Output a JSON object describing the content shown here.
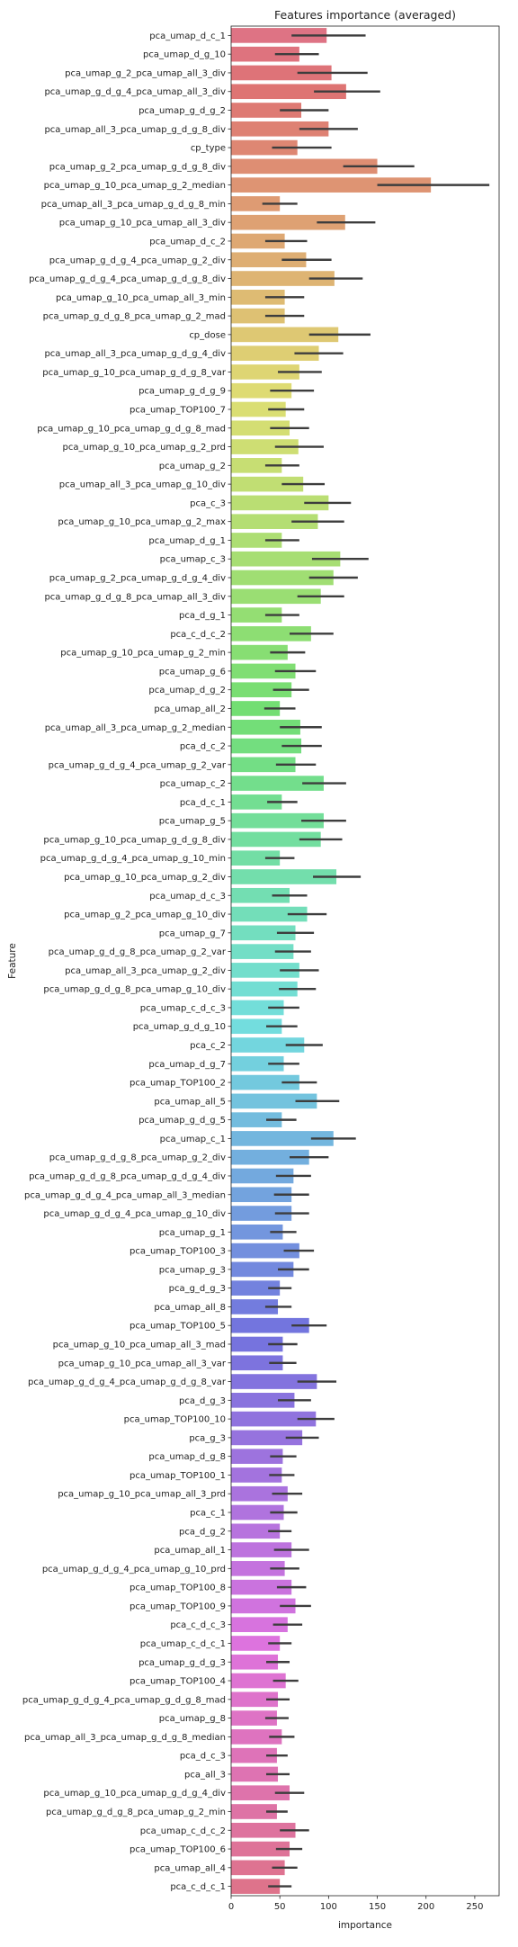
{
  "chart_data": {
    "type": "bar",
    "orientation": "horizontal",
    "title": "Features importance (averaged)",
    "xlabel": "importance",
    "ylabel": "Feature",
    "xlim": [
      0,
      275
    ],
    "xticks": [
      0,
      50,
      100,
      150,
      200,
      250
    ],
    "grid": false,
    "legend": "none",
    "palette": "husl",
    "series": [
      {
        "values": [
          {
            "feature": "pca_umap_d_c_1",
            "value": 98,
            "err": [
              62,
              138
            ]
          },
          {
            "feature": "pca_umap_d_g_10",
            "value": 70,
            "err": [
              45,
              90
            ]
          },
          {
            "feature": "pca_umap_g_2_pca_umap_all_3_div",
            "value": 103,
            "err": [
              68,
              140
            ]
          },
          {
            "feature": "pca_umap_g_d_g_4_pca_umap_all_3_div",
            "value": 118,
            "err": [
              85,
              153
            ]
          },
          {
            "feature": "pca_umap_g_d_g_2",
            "value": 72,
            "err": [
              50,
              100
            ]
          },
          {
            "feature": "pca_umap_all_3_pca_umap_g_d_g_8_div",
            "value": 100,
            "err": [
              70,
              130
            ]
          },
          {
            "feature": "cp_type",
            "value": 68,
            "err": [
              42,
              103
            ]
          },
          {
            "feature": "pca_umap_g_2_pca_umap_g_d_g_8_div",
            "value": 150,
            "err": [
              115,
              188
            ]
          },
          {
            "feature": "pca_umap_g_10_pca_umap_g_2_median",
            "value": 205,
            "err": [
              150,
              265
            ]
          },
          {
            "feature": "pca_umap_all_3_pca_umap_g_d_g_8_min",
            "value": 50,
            "err": [
              32,
              68
            ]
          },
          {
            "feature": "pca_umap_g_10_pca_umap_all_3_div",
            "value": 117,
            "err": [
              88,
              148
            ]
          },
          {
            "feature": "pca_umap_d_c_2",
            "value": 55,
            "err": [
              35,
              78
            ]
          },
          {
            "feature": "pca_umap_g_d_g_4_pca_umap_g_2_div",
            "value": 77,
            "err": [
              52,
              103
            ]
          },
          {
            "feature": "pca_umap_g_d_g_4_pca_umap_g_d_g_8_div",
            "value": 106,
            "err": [
              80,
              135
            ]
          },
          {
            "feature": "pca_umap_g_10_pca_umap_all_3_min",
            "value": 55,
            "err": [
              35,
              75
            ]
          },
          {
            "feature": "pca_umap_g_d_g_8_pca_umap_g_2_mad",
            "value": 55,
            "err": [
              35,
              75
            ]
          },
          {
            "feature": "cp_dose",
            "value": 110,
            "err": [
              80,
              143
            ]
          },
          {
            "feature": "pca_umap_all_3_pca_umap_g_d_g_4_div",
            "value": 90,
            "err": [
              65,
              115
            ]
          },
          {
            "feature": "pca_umap_g_10_pca_umap_g_d_g_8_var",
            "value": 70,
            "err": [
              48,
              93
            ]
          },
          {
            "feature": "pca_umap_g_d_g_9",
            "value": 62,
            "err": [
              40,
              85
            ]
          },
          {
            "feature": "pca_umap_TOP100_7",
            "value": 56,
            "err": [
              38,
              75
            ]
          },
          {
            "feature": "pca_umap_g_10_pca_umap_g_d_g_8_mad",
            "value": 60,
            "err": [
              40,
              80
            ]
          },
          {
            "feature": "pca_umap_g_10_pca_umap_g_2_prd",
            "value": 69,
            "err": [
              45,
              95
            ]
          },
          {
            "feature": "pca_umap_g_2",
            "value": 52,
            "err": [
              35,
              70
            ]
          },
          {
            "feature": "pca_umap_all_3_pca_umap_g_10_div",
            "value": 74,
            "err": [
              52,
              96
            ]
          },
          {
            "feature": "pca_c_3",
            "value": 100,
            "err": [
              75,
              123
            ]
          },
          {
            "feature": "pca_umap_g_10_pca_umap_g_2_max",
            "value": 89,
            "err": [
              62,
              116
            ]
          },
          {
            "feature": "pca_umap_d_g_1",
            "value": 52,
            "err": [
              35,
              70
            ]
          },
          {
            "feature": "pca_umap_c_3",
            "value": 112,
            "err": [
              83,
              141
            ]
          },
          {
            "feature": "pca_umap_g_2_pca_umap_g_d_g_4_div",
            "value": 105,
            "err": [
              80,
              130
            ]
          },
          {
            "feature": "pca_umap_g_d_g_8_pca_umap_all_3_div",
            "value": 92,
            "err": [
              68,
              116
            ]
          },
          {
            "feature": "pca_d_g_1",
            "value": 52,
            "err": [
              35,
              70
            ]
          },
          {
            "feature": "pca_c_d_c_2",
            "value": 82,
            "err": [
              60,
              105
            ]
          },
          {
            "feature": "pca_umap_g_10_pca_umap_g_2_min",
            "value": 58,
            "err": [
              40,
              76
            ]
          },
          {
            "feature": "pca_umap_g_6",
            "value": 66,
            "err": [
              45,
              87
            ]
          },
          {
            "feature": "pca_umap_d_g_2",
            "value": 62,
            "err": [
              43,
              80
            ]
          },
          {
            "feature": "pca_umap_all_2",
            "value": 50,
            "err": [
              34,
              66
            ]
          },
          {
            "feature": "pca_umap_all_3_pca_umap_g_2_median",
            "value": 71,
            "err": [
              50,
              93
            ]
          },
          {
            "feature": "pca_d_c_2",
            "value": 72,
            "err": [
              52,
              93
            ]
          },
          {
            "feature": "pca_umap_g_d_g_4_pca_umap_g_2_var",
            "value": 66,
            "err": [
              46,
              87
            ]
          },
          {
            "feature": "pca_umap_c_2",
            "value": 95,
            "err": [
              73,
              118
            ]
          },
          {
            "feature": "pca_d_c_1",
            "value": 52,
            "err": [
              37,
              68
            ]
          },
          {
            "feature": "pca_umap_g_5",
            "value": 95,
            "err": [
              72,
              118
            ]
          },
          {
            "feature": "pca_umap_g_10_pca_umap_g_d_g_8_div",
            "value": 92,
            "err": [
              70,
              114
            ]
          },
          {
            "feature": "pca_umap_g_d_g_4_pca_umap_g_10_min",
            "value": 50,
            "err": [
              35,
              65
            ]
          },
          {
            "feature": "pca_umap_g_10_pca_umap_g_2_div",
            "value": 108,
            "err": [
              84,
              133
            ]
          },
          {
            "feature": "pca_umap_d_c_3",
            "value": 60,
            "err": [
              42,
              78
            ]
          },
          {
            "feature": "pca_umap_g_2_pca_umap_g_10_div",
            "value": 78,
            "err": [
              58,
              98
            ]
          },
          {
            "feature": "pca_umap_g_7",
            "value": 66,
            "err": [
              47,
              85
            ]
          },
          {
            "feature": "pca_umap_g_d_g_8_pca_umap_g_2_var",
            "value": 64,
            "err": [
              45,
              82
            ]
          },
          {
            "feature": "pca_umap_all_3_pca_umap_g_2_div",
            "value": 70,
            "err": [
              50,
              90
            ]
          },
          {
            "feature": "pca_umap_g_d_g_8_pca_umap_g_10_div",
            "value": 68,
            "err": [
              49,
              87
            ]
          },
          {
            "feature": "pca_umap_c_d_c_3",
            "value": 54,
            "err": [
              38,
              70
            ]
          },
          {
            "feature": "pca_umap_g_d_g_10",
            "value": 52,
            "err": [
              36,
              68
            ]
          },
          {
            "feature": "pca_c_2",
            "value": 75,
            "err": [
              56,
              94
            ]
          },
          {
            "feature": "pca_umap_d_g_7",
            "value": 54,
            "err": [
              38,
              70
            ]
          },
          {
            "feature": "pca_umap_TOP100_2",
            "value": 70,
            "err": [
              52,
              88
            ]
          },
          {
            "feature": "pca_umap_all_5",
            "value": 88,
            "err": [
              66,
              111
            ]
          },
          {
            "feature": "pca_umap_g_d_g_5",
            "value": 52,
            "err": [
              36,
              67
            ]
          },
          {
            "feature": "pca_umap_c_1",
            "value": 105,
            "err": [
              82,
              128
            ]
          },
          {
            "feature": "pca_umap_g_d_g_8_pca_umap_g_2_div",
            "value": 80,
            "err": [
              60,
              100
            ]
          },
          {
            "feature": "pca_umap_g_d_g_8_pca_umap_g_d_g_4_div",
            "value": 64,
            "err": [
              46,
              82
            ]
          },
          {
            "feature": "pca_umap_g_d_g_4_pca_umap_all_3_median",
            "value": 62,
            "err": [
              44,
              80
            ]
          },
          {
            "feature": "pca_umap_g_d_g_4_pca_umap_g_10_div",
            "value": 62,
            "err": [
              45,
              80
            ]
          },
          {
            "feature": "pca_umap_g_1",
            "value": 53,
            "err": [
              40,
              67
            ]
          },
          {
            "feature": "pca_umap_TOP100_3",
            "value": 70,
            "err": [
              54,
              85
            ]
          },
          {
            "feature": "pca_umap_g_3",
            "value": 64,
            "err": [
              48,
              80
            ]
          },
          {
            "feature": "pca_g_d_g_3",
            "value": 50,
            "err": [
              38,
              62
            ]
          },
          {
            "feature": "pca_umap_all_8",
            "value": 48,
            "err": [
              35,
              62
            ]
          },
          {
            "feature": "pca_umap_TOP100_5",
            "value": 80,
            "err": [
              62,
              98
            ]
          },
          {
            "feature": "pca_umap_g_10_pca_umap_all_3_mad",
            "value": 53,
            "err": [
              38,
              68
            ]
          },
          {
            "feature": "pca_umap_g_10_pca_umap_all_3_var",
            "value": 53,
            "err": [
              39,
              67
            ]
          },
          {
            "feature": "pca_umap_g_d_g_4_pca_umap_g_d_g_8_var",
            "value": 88,
            "err": [
              68,
              108
            ]
          },
          {
            "feature": "pca_d_g_3",
            "value": 65,
            "err": [
              48,
              82
            ]
          },
          {
            "feature": "pca_umap_TOP100_10",
            "value": 87,
            "err": [
              68,
              106
            ]
          },
          {
            "feature": "pca_g_3",
            "value": 73,
            "err": [
              56,
              90
            ]
          },
          {
            "feature": "pca_umap_d_g_8",
            "value": 53,
            "err": [
              40,
              67
            ]
          },
          {
            "feature": "pca_umap_TOP100_1",
            "value": 52,
            "err": [
              39,
              65
            ]
          },
          {
            "feature": "pca_umap_g_10_pca_umap_all_3_prd",
            "value": 58,
            "err": [
              42,
              73
            ]
          },
          {
            "feature": "pca_c_1",
            "value": 54,
            "err": [
              40,
              68
            ]
          },
          {
            "feature": "pca_d_g_2",
            "value": 50,
            "err": [
              38,
              62
            ]
          },
          {
            "feature": "pca_umap_all_1",
            "value": 62,
            "err": [
              44,
              80
            ]
          },
          {
            "feature": "pca_umap_g_d_g_4_pca_umap_g_10_prd",
            "value": 55,
            "err": [
              40,
              70
            ]
          },
          {
            "feature": "pca_umap_TOP100_8",
            "value": 62,
            "err": [
              47,
              77
            ]
          },
          {
            "feature": "pca_umap_TOP100_9",
            "value": 66,
            "err": [
              50,
              82
            ]
          },
          {
            "feature": "pca_c_d_c_3",
            "value": 58,
            "err": [
              43,
              73
            ]
          },
          {
            "feature": "pca_umap_c_d_c_1",
            "value": 50,
            "err": [
              38,
              62
            ]
          },
          {
            "feature": "pca_umap_g_d_g_3",
            "value": 48,
            "err": [
              36,
              60
            ]
          },
          {
            "feature": "pca_umap_TOP100_4",
            "value": 56,
            "err": [
              43,
              69
            ]
          },
          {
            "feature": "pca_umap_g_d_g_4_pca_umap_g_d_g_8_mad",
            "value": 48,
            "err": [
              36,
              60
            ]
          },
          {
            "feature": "pca_umap_g_8",
            "value": 47,
            "err": [
              35,
              59
            ]
          },
          {
            "feature": "pca_umap_all_3_pca_umap_g_d_g_8_median",
            "value": 52,
            "err": [
              39,
              65
            ]
          },
          {
            "feature": "pca_d_c_3",
            "value": 47,
            "err": [
              36,
              58
            ]
          },
          {
            "feature": "pca_all_3",
            "value": 48,
            "err": [
              36,
              60
            ]
          },
          {
            "feature": "pca_umap_g_10_pca_umap_g_d_g_4_div",
            "value": 60,
            "err": [
              45,
              75
            ]
          },
          {
            "feature": "pca_umap_g_d_g_8_pca_umap_g_2_min",
            "value": 47,
            "err": [
              36,
              58
            ]
          },
          {
            "feature": "pca_umap_c_d_c_2",
            "value": 66,
            "err": [
              50,
              80
            ]
          },
          {
            "feature": "pca_umap_TOP100_6",
            "value": 60,
            "err": [
              46,
              73
            ]
          },
          {
            "feature": "pca_umap_all_4",
            "value": 55,
            "err": [
              42,
              68
            ]
          },
          {
            "feature": "pca_c_d_c_1",
            "value": 50,
            "err": [
              38,
              62
            ]
          }
        ]
      }
    ]
  }
}
